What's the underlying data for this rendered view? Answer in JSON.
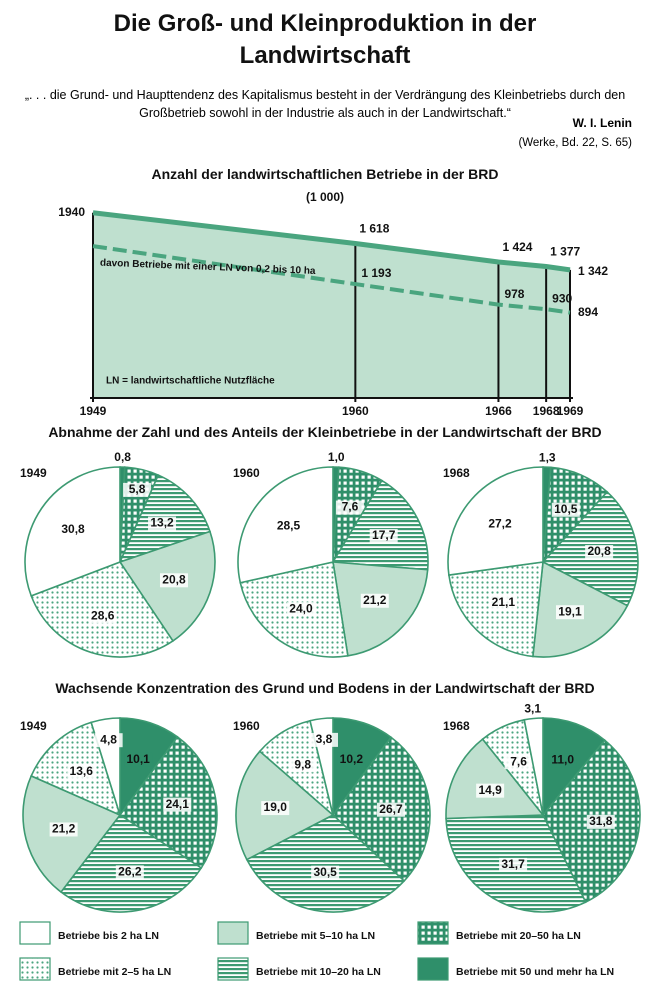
{
  "title": "Die Groß- und Kleinproduktion in der Landwirtschaft",
  "quote": "„. . . die Grund- und Haupttendenz des Kapitalismus besteht in der Verdrängung des Kleinbetriebs durch den Großbetrieb sowohl in der Industrie als auch in der Landwirtschaft.“",
  "author": "W. I. Lenin",
  "source": "(Werke, Bd. 22, S. 65)",
  "legend": {
    "categories": [
      "Betriebe bis 2 ha LN",
      "Betriebe mit 2–5 ha LN",
      "Betriebe mit 5–10 ha LN",
      "Betriebe mit 10–20 ha LN",
      "Betriebe mit 20–50 ha LN",
      "Betriebe mit 50 und mehr ha LN"
    ],
    "fills": [
      "white",
      "dots",
      "#bfe0cf",
      "stripes",
      "checks",
      "#2f8f6a"
    ]
  },
  "chart_data": [
    {
      "type": "line",
      "title": "Anzahl der landwirtschaftlichen Betriebe in der BRD",
      "subtitle": "(1 000)",
      "annotation": "davon Betriebe mit einer LN von 0,2 bis 10 ha",
      "note": "LN = landwirtschaftliche Nutzfläche",
      "x": [
        1949,
        1960,
        1966,
        1968,
        1969
      ],
      "xlim": [
        1949,
        1969
      ],
      "xticks": [
        1949,
        1960,
        1966,
        1968,
        1969
      ],
      "ylim": [
        0,
        2000
      ],
      "series": [
        {
          "color": "#4aa57f",
          "values": [
            1940,
            1618,
            1424,
            1377,
            1342
          ],
          "value_labels": [
            "1940",
            "1 618",
            "1 424",
            "1 377",
            "1 342"
          ]
        },
        {
          "color": "#4aa57f",
          "dashed": true,
          "values": [
            1590,
            1193,
            978,
            930,
            894
          ],
          "value_labels": [
            null,
            "1 193",
            "978",
            "930",
            "894"
          ]
        }
      ]
    },
    {
      "type": "pie",
      "title": "Abnahme der Zahl und des Anteils der Kleinbetriebe in der Landwirtschaft der BRD",
      "pies": [
        {
          "label": "1949",
          "values": [
            30.8,
            28.6,
            20.8,
            13.2,
            5.8,
            0.8
          ],
          "value_labels": [
            "30,8",
            "28,6",
            "20,8",
            "13,2",
            "5,8",
            "0,8"
          ]
        },
        {
          "label": "1960",
          "values": [
            28.5,
            24.0,
            21.2,
            17.7,
            7.6,
            1.0
          ],
          "value_labels": [
            "28,5",
            "24,0",
            "21,2",
            "17,7",
            "7,6",
            "1,0"
          ]
        },
        {
          "label": "1968",
          "values": [
            27.2,
            21.1,
            19.1,
            20.8,
            10.5,
            1.3
          ],
          "value_labels": [
            "27,2",
            "21,1",
            "19,1",
            "20,8",
            "10,5",
            "1,3"
          ]
        }
      ]
    },
    {
      "type": "pie",
      "title": "Wachsende Konzentration des Grund und Bodens in der Landwirtschaft der BRD",
      "pies": [
        {
          "label": "1949",
          "values": [
            4.8,
            13.6,
            21.2,
            26.2,
            24.1,
            10.1
          ],
          "value_labels": [
            "4,8",
            "13,6",
            "21,2",
            "26,2",
            "24,1",
            "10,1"
          ]
        },
        {
          "label": "1960",
          "values": [
            3.8,
            9.8,
            19.0,
            30.5,
            26.7,
            10.2
          ],
          "value_labels": [
            "3,8",
            "9,8",
            "19,0",
            "30,5",
            "26,7",
            "10,2"
          ]
        },
        {
          "label": "1968",
          "values": [
            3.1,
            7.6,
            14.9,
            31.7,
            31.8,
            11.0
          ],
          "value_labels": [
            "3,1",
            "7,6",
            "14,9",
            "31,7",
            "31,8",
            "11,0"
          ]
        }
      ]
    }
  ]
}
